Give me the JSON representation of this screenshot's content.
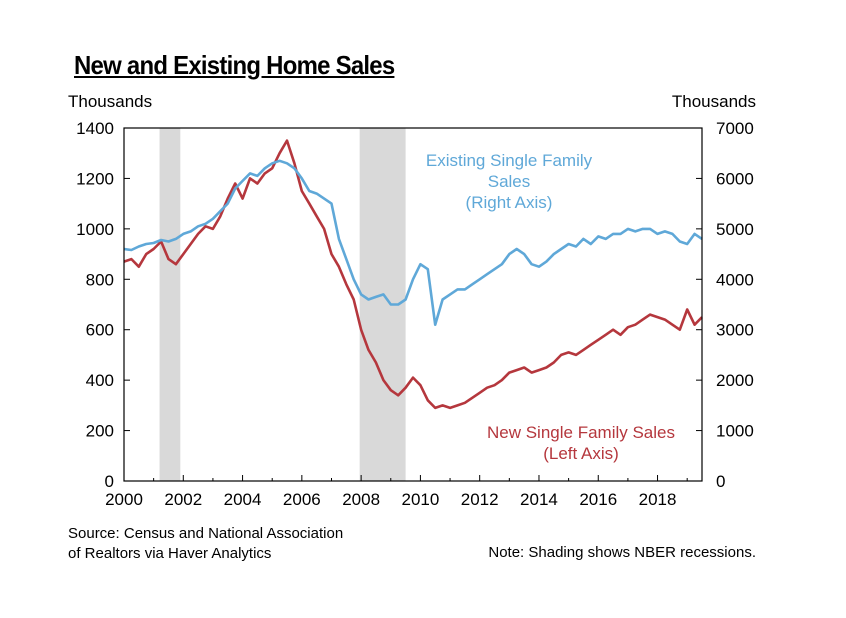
{
  "title": "New and Existing Home Sales",
  "left_unit": "Thousands",
  "right_unit": "Thousands",
  "source_lines": [
    "Source: Census and National Association",
    "of Realtors via Haver Analytics"
  ],
  "note": "Note: Shading shows NBER recessions.",
  "colors": {
    "new": "#b5373d",
    "existing": "#5fa8d8",
    "recession": "#d9d9d9"
  },
  "chart_data": {
    "type": "line",
    "title": "New and Existing Home Sales",
    "xlim": [
      2000,
      2019.5
    ],
    "x_ticks": [
      "2000",
      "2002",
      "2004",
      "2006",
      "2008",
      "2010",
      "2012",
      "2014",
      "2016",
      "2018"
    ],
    "left_axis": {
      "label": "Thousands",
      "ylim": [
        0,
        1400
      ],
      "ticks": [
        "0",
        "200",
        "400",
        "600",
        "800",
        "1000",
        "1200",
        "1400"
      ]
    },
    "right_axis": {
      "label": "Thousands",
      "ylim": [
        0,
        7000
      ],
      "ticks": [
        "0",
        "1000",
        "2000",
        "3000",
        "4000",
        "5000",
        "6000",
        "7000"
      ]
    },
    "recessions": [
      [
        2001.2,
        2001.9
      ],
      [
        2007.95,
        2009.5
      ]
    ],
    "annotations": [
      {
        "lines": [
          "Existing Single Family",
          "Sales",
          "(Right Axis)"
        ],
        "series": "existing"
      },
      {
        "lines": [
          "New Single Family Sales",
          "(Left Axis)"
        ],
        "series": "new"
      }
    ],
    "series": [
      {
        "name": "New Single Family Sales",
        "axis": "left",
        "x": [
          2000.0,
          2000.25,
          2000.5,
          2000.75,
          2001.0,
          2001.25,
          2001.5,
          2001.75,
          2002.0,
          2002.25,
          2002.5,
          2002.75,
          2003.0,
          2003.25,
          2003.5,
          2003.75,
          2004.0,
          2004.25,
          2004.5,
          2004.75,
          2005.0,
          2005.25,
          2005.5,
          2005.75,
          2006.0,
          2006.25,
          2006.5,
          2006.75,
          2007.0,
          2007.25,
          2007.5,
          2007.75,
          2008.0,
          2008.25,
          2008.5,
          2008.75,
          2009.0,
          2009.25,
          2009.5,
          2009.75,
          2010.0,
          2010.25,
          2010.5,
          2010.75,
          2011.0,
          2011.25,
          2011.5,
          2011.75,
          2012.0,
          2012.25,
          2012.5,
          2012.75,
          2013.0,
          2013.25,
          2013.5,
          2013.75,
          2014.0,
          2014.25,
          2014.5,
          2014.75,
          2015.0,
          2015.25,
          2015.5,
          2015.75,
          2016.0,
          2016.25,
          2016.5,
          2016.75,
          2017.0,
          2017.25,
          2017.5,
          2017.75,
          2018.0,
          2018.25,
          2018.5,
          2018.75,
          2019.0,
          2019.25,
          2019.5
        ],
        "values": [
          870,
          880,
          850,
          900,
          920,
          950,
          880,
          860,
          900,
          940,
          980,
          1010,
          1000,
          1050,
          1120,
          1180,
          1120,
          1200,
          1180,
          1220,
          1240,
          1300,
          1350,
          1260,
          1150,
          1100,
          1050,
          1000,
          900,
          850,
          780,
          720,
          600,
          520,
          470,
          400,
          360,
          340,
          370,
          410,
          380,
          320,
          290,
          300,
          290,
          300,
          310,
          330,
          350,
          370,
          380,
          400,
          430,
          440,
          450,
          430,
          440,
          450,
          470,
          500,
          510,
          500,
          520,
          540,
          560,
          580,
          600,
          580,
          610,
          620,
          640,
          660,
          650,
          640,
          620,
          600,
          680,
          620,
          650
        ]
      },
      {
        "name": "Existing Single Family Sales",
        "axis": "right",
        "x": [
          2000.0,
          2000.25,
          2000.5,
          2000.75,
          2001.0,
          2001.25,
          2001.5,
          2001.75,
          2002.0,
          2002.25,
          2002.5,
          2002.75,
          2003.0,
          2003.25,
          2003.5,
          2003.75,
          2004.0,
          2004.25,
          2004.5,
          2004.75,
          2005.0,
          2005.25,
          2005.5,
          2005.75,
          2006.0,
          2006.25,
          2006.5,
          2006.75,
          2007.0,
          2007.25,
          2007.5,
          2007.75,
          2008.0,
          2008.25,
          2008.5,
          2008.75,
          2009.0,
          2009.25,
          2009.5,
          2009.75,
          2010.0,
          2010.25,
          2010.5,
          2010.75,
          2011.0,
          2011.25,
          2011.5,
          2011.75,
          2012.0,
          2012.25,
          2012.5,
          2012.75,
          2013.0,
          2013.25,
          2013.5,
          2013.75,
          2014.0,
          2014.25,
          2014.5,
          2014.75,
          2015.0,
          2015.25,
          2015.5,
          2015.75,
          2016.0,
          2016.25,
          2016.5,
          2016.75,
          2017.0,
          2017.25,
          2017.5,
          2017.75,
          2018.0,
          2018.25,
          2018.5,
          2018.75,
          2019.0,
          2019.25,
          2019.5
        ],
        "values": [
          4600,
          4580,
          4650,
          4700,
          4720,
          4780,
          4750,
          4800,
          4900,
          4950,
          5050,
          5100,
          5200,
          5350,
          5500,
          5800,
          5950,
          6100,
          6050,
          6200,
          6300,
          6350,
          6300,
          6200,
          6000,
          5750,
          5700,
          5600,
          5500,
          4800,
          4400,
          4000,
          3700,
          3600,
          3650,
          3700,
          3500,
          3500,
          3600,
          4000,
          4300,
          4200,
          3100,
          3600,
          3700,
          3800,
          3800,
          3900,
          4000,
          4100,
          4200,
          4300,
          4500,
          4600,
          4500,
          4300,
          4250,
          4350,
          4500,
          4600,
          4700,
          4650,
          4800,
          4700,
          4850,
          4800,
          4900,
          4900,
          5000,
          4950,
          5000,
          5000,
          4900,
          4950,
          4900,
          4750,
          4700,
          4900,
          4800
        ]
      }
    ]
  }
}
